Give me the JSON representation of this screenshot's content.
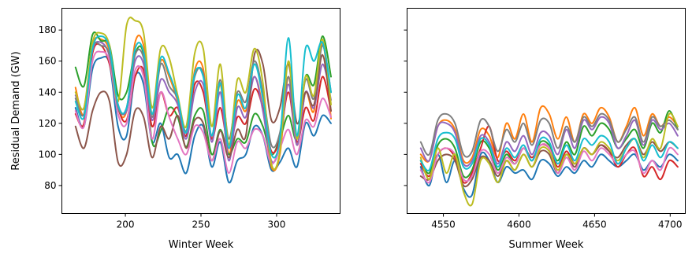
{
  "chart_data": [
    {
      "type": "line",
      "xlabel": "Winter Week",
      "ylabel": "Residual Demand (GW)",
      "xlim": [
        158,
        342
      ],
      "ylim": [
        62,
        194
      ],
      "xticks": [
        200,
        250,
        300
      ],
      "yticks": [
        80,
        100,
        120,
        140,
        160,
        180
      ],
      "x_range": [
        167,
        336
      ],
      "colors": [
        "#1f77b4",
        "#ff7f0e",
        "#2ca02c",
        "#d62728",
        "#9467bd",
        "#8c564b",
        "#e377c2",
        "#7f7f7f",
        "#bcbd22",
        "#17becf"
      ],
      "series": [
        {
          "values": [
            130,
            118,
            155,
            162,
            158,
            118,
            112,
            150,
            145,
            108,
            120,
            98,
            100,
            88,
            112,
            118,
            92,
            108,
            82,
            96,
            100,
            118,
            112,
            90,
            95,
            104,
            92,
            120,
            112,
            125,
            120
          ]
        },
        {
          "values": [
            143,
            126,
            170,
            174,
            166,
            130,
            128,
            172,
            170,
            126,
            160,
            150,
            134,
            112,
            154,
            155,
            110,
            145,
            100,
            134,
            128,
            150,
            130,
            92,
            100,
            150,
            106,
            140,
            128,
            172,
            123
          ]
        },
        {
          "values": [
            156,
            144,
            177,
            173,
            170,
            138,
            140,
            165,
            164,
            108,
            115,
            130,
            124,
            105,
            125,
            128,
            100,
            116,
            100,
            110,
            108,
            126,
            118,
            100,
            110,
            125,
            110,
            150,
            145,
            176,
            150
          ]
        },
        {
          "values": [
            126,
            120,
            165,
            170,
            158,
            130,
            122,
            150,
            154,
            118,
            140,
            125,
            130,
            112,
            145,
            140,
            110,
            130,
            104,
            124,
            120,
            142,
            130,
            102,
            110,
            140,
            108,
            130,
            122,
            150,
            128
          ]
        },
        {
          "values": [
            138,
            130,
            167,
            172,
            163,
            132,
            128,
            160,
            158,
            122,
            148,
            140,
            132,
            110,
            140,
            145,
            108,
            140,
            96,
            130,
            124,
            150,
            128,
            96,
            106,
            145,
            106,
            140,
            130,
            158,
            135
          ]
        },
        {
          "values": [
            118,
            104,
            128,
            140,
            134,
            95,
            100,
            128,
            124,
            98,
            118,
            110,
            125,
            104,
            122,
            120,
            96,
            115,
            98,
            116,
            112,
            164,
            158,
            122,
            130,
            158,
            120,
            140,
            132,
            164,
            128
          ]
        },
        {
          "values": [
            128,
            118,
            160,
            166,
            160,
            126,
            120,
            154,
            150,
            110,
            140,
            124,
            110,
            100,
            118,
            114,
            96,
            110,
            88,
            108,
            104,
            116,
            112,
            94,
            104,
            116,
            100,
            122,
            118,
            136,
            124
          ]
        },
        {
          "values": [
            136,
            126,
            168,
            170,
            164,
            130,
            130,
            164,
            162,
            124,
            158,
            144,
            136,
            115,
            150,
            152,
            112,
            148,
            110,
            140,
            134,
            160,
            140,
            106,
            114,
            150,
            112,
            148,
            136,
            170,
            140
          ]
        },
        {
          "values": [
            140,
            130,
            172,
            178,
            170,
            134,
            183,
            186,
            178,
            130,
            168,
            162,
            138,
            118,
            165,
            168,
            118,
            158,
            106,
            148,
            140,
            168,
            146,
            94,
            102,
            160,
            110,
            150,
            138,
            174,
            132
          ]
        },
        {
          "values": [
            134,
            124,
            168,
            176,
            168,
            132,
            130,
            168,
            166,
            126,
            162,
            152,
            136,
            114,
            152,
            150,
            112,
            146,
            104,
            138,
            130,
            158,
            136,
            100,
            110,
            175,
            112,
            168,
            160,
            172,
            140
          ]
        }
      ]
    },
    {
      "type": "line",
      "xlabel": "Summer Week",
      "ylabel": "",
      "xlim": [
        4526,
        4710
      ],
      "ylim": [
        62,
        194
      ],
      "xticks": [
        4550,
        4600,
        4650,
        4700
      ],
      "yticks": [
        80,
        100,
        120,
        140,
        160,
        180
      ],
      "x_range": [
        4535,
        4705
      ],
      "colors": [
        "#1f77b4",
        "#ff7f0e",
        "#2ca02c",
        "#d62728",
        "#9467bd",
        "#8c564b",
        "#e377c2",
        "#7f7f7f",
        "#bcbd22",
        "#17becf"
      ],
      "series": [
        {
          "values": [
            92,
            80,
            100,
            82,
            96,
            78,
            74,
            100,
            96,
            82,
            92,
            88,
            90,
            84,
            96,
            94,
            86,
            92,
            88,
            96,
            92,
            100,
            96,
            92,
            96,
            100,
            90,
            96,
            92,
            100,
            96
          ]
        },
        {
          "values": [
            100,
            96,
            118,
            122,
            116,
            96,
            98,
            116,
            112,
            98,
            120,
            110,
            126,
            108,
            130,
            126,
            110,
            124,
            108,
            126,
            120,
            130,
            124,
            108,
            118,
            130,
            112,
            126,
            118,
            124,
            118
          ]
        },
        {
          "values": [
            96,
            88,
            106,
            110,
            104,
            86,
            90,
            108,
            104,
            90,
            100,
            94,
            104,
            96,
            108,
            106,
            96,
            108,
            100,
            118,
            112,
            120,
            116,
            104,
            110,
            116,
            104,
            120,
            114,
            128,
            116
          ]
        },
        {
          "values": [
            94,
            86,
            100,
            104,
            98,
            82,
            88,
            104,
            118,
            96,
            102,
            96,
            104,
            98,
            106,
            104,
            92,
            102,
            94,
            104,
            100,
            106,
            102,
            92,
            100,
            104,
            86,
            92,
            84,
            96,
            92
          ]
        },
        {
          "values": [
            104,
            96,
            118,
            120,
            114,
            94,
            96,
            112,
            108,
            94,
            108,
            102,
            112,
            100,
            114,
            112,
            100,
            116,
            104,
            122,
            116,
            124,
            120,
            104,
            112,
            122,
            106,
            122,
            116,
            120,
            112
          ]
        },
        {
          "values": [
            86,
            84,
            96,
            100,
            96,
            80,
            84,
            98,
            96,
            86,
            96,
            90,
            100,
            92,
            102,
            100,
            88,
            100,
            92,
            104,
            100,
            106,
            102,
            98,
            106,
            110,
            100,
            108,
            102,
            108,
            104
          ]
        },
        {
          "values": [
            90,
            82,
            100,
            104,
            100,
            84,
            86,
            102,
            100,
            88,
            98,
            94,
            104,
            96,
            106,
            104,
            88,
            98,
            90,
            102,
            96,
            104,
            100,
            94,
            100,
            102,
            88,
            96,
            90,
            104,
            100
          ]
        },
        {
          "values": [
            108,
            100,
            122,
            126,
            120,
            100,
            102,
            122,
            118,
            102,
            116,
            108,
            120,
            106,
            122,
            120,
            104,
            118,
            108,
            124,
            118,
            126,
            122,
            108,
            116,
            124,
            108,
            124,
            118,
            122,
            116
          ]
        },
        {
          "values": [
            98,
            84,
            104,
            88,
            100,
            76,
            68,
            96,
            94,
            82,
            96,
            90,
            100,
            92,
            104,
            102,
            90,
            100,
            94,
            104,
            100,
            108,
            104,
            96,
            104,
            110,
            98,
            110,
            104,
            126,
            118
          ]
        },
        {
          "values": [
            96,
            90,
            110,
            114,
            110,
            92,
            94,
            110,
            106,
            92,
            104,
            98,
            106,
            96,
            110,
            108,
            94,
            106,
            96,
            110,
            106,
            112,
            108,
            94,
            104,
            110,
            96,
            106,
            98,
            108,
            104
          ]
        }
      ]
    }
  ]
}
